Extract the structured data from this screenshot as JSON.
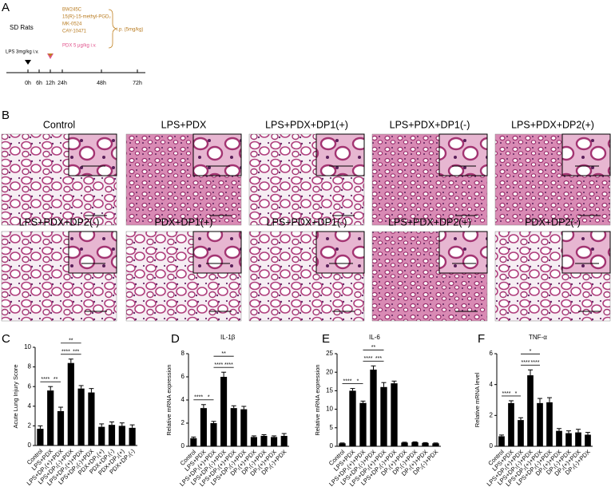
{
  "panel_labels": [
    "A",
    "B",
    "C",
    "D",
    "E",
    "F"
  ],
  "panel_a": {
    "animal": "SD Rats",
    "lps": "LPS 3mg/kg i.v.",
    "drugs": [
      "BW245C",
      "15(R)-15-methyl-PGD₂",
      "MK-0524",
      "CAY-10471"
    ],
    "pdx": "PDX 5 μg/kg i.v.",
    "route": "i.p. (5mg/kg)",
    "timepoints": [
      "0h",
      "6h",
      "12h",
      "24h",
      "48h",
      "72h"
    ]
  },
  "panel_b": {
    "groups": [
      "Control",
      "LPS+PDX",
      "LPS+PDX+DP1(+)",
      "LPS+PDX+DP1(-)",
      "LPS+PDX+DP2(+)",
      "LPS+PDX+DP2(-)",
      "PDX+DP1(+)",
      "LPS+PDX+DP1(-)",
      "LPS+PDX+DP2(+)",
      "PDX+DP2(-)"
    ]
  },
  "chart_data": [
    {
      "type": "bar",
      "ylabel": "Acute Lung Injury Score",
      "categories": [
        "Control",
        "LPS+PDX",
        "LPS+DP₁(+)+PDX",
        "LPS+DP₁(-)+PDX",
        "LPS+DP₂(+)+PDX",
        "LPS+DP₂(-)+PDX",
        "PDX+DP₁(+)",
        "PDX+DP₁(-)",
        "PDX+DP₂(+)",
        "PDX+DP₂(-)"
      ],
      "values": [
        1.7,
        5.6,
        3.5,
        8.4,
        5.8,
        5.4,
        1.9,
        2.1,
        2.0,
        1.8
      ],
      "errors": [
        0.3,
        0.4,
        0.4,
        0.4,
        0.3,
        0.4,
        0.3,
        0.3,
        0.3,
        0.3
      ],
      "color": "#000000",
      "ylim": [
        0,
        10
      ],
      "yticks": [
        0,
        2,
        4,
        6,
        8,
        10
      ],
      "significance": [
        {
          "label": "****",
          "between": [
            0,
            1
          ]
        },
        {
          "label": "**",
          "between": [
            1,
            2
          ]
        },
        {
          "label": "****",
          "between": [
            2,
            3
          ]
        },
        {
          "label": "***",
          "between": [
            3,
            4
          ]
        },
        {
          "label": "**",
          "between": [
            2,
            4
          ]
        }
      ]
    },
    {
      "type": "bar",
      "title": "IL-1β",
      "ylabel": "Relative mRNA expression",
      "categories": [
        "Control",
        "LPS+PDX",
        "LPS+DP₁(+)+PDX",
        "LPS+DP₁(-)+PDX",
        "LPS+DP₂(+)+PDX",
        "LPS+DP₂(-)+PDX",
        "DP₁(+)+PDX",
        "DP₁(-)+PDX",
        "DP₂(+)+PDX",
        "DP₂(-)+PDX"
      ],
      "values": [
        0.7,
        3.3,
        2.0,
        6.0,
        3.3,
        3.2,
        0.8,
        0.9,
        0.8,
        0.9
      ],
      "errors": [
        0.1,
        0.3,
        0.15,
        0.4,
        0.2,
        0.25,
        0.1,
        0.1,
        0.1,
        0.2
      ],
      "color": "#000000",
      "ylim": [
        0,
        8
      ],
      "yticks": [
        0,
        2,
        4,
        6,
        8
      ],
      "significance": [
        {
          "label": "****",
          "between": [
            0,
            1
          ]
        },
        {
          "label": "*",
          "between": [
            1,
            2
          ]
        },
        {
          "label": "****",
          "between": [
            2,
            3
          ]
        },
        {
          "label": "****",
          "between": [
            3,
            4
          ]
        },
        {
          "label": "**",
          "between": [
            2,
            4
          ]
        }
      ]
    },
    {
      "type": "bar",
      "title": "IL-6",
      "ylabel": "Relative mRNA expression",
      "categories": [
        "Control",
        "LPS+PDX",
        "LPS+DP₁(+)+PDX",
        "LPS+DP₁(-)+PDX",
        "LPS+DP₂(+)+PDX",
        "LPS+DP₂(-)+PDX",
        "DP₁(+)+PDX",
        "DP₁(-)+PDX",
        "DP₂(+)+PDX",
        "DP₂(-)+PDX"
      ],
      "values": [
        0.8,
        15,
        11.7,
        20.7,
        16,
        17,
        1.0,
        1.1,
        0.9,
        0.8
      ],
      "errors": [
        0.1,
        0.6,
        0.5,
        1.0,
        1.2,
        0.6,
        0.1,
        0.1,
        0.1,
        0.1
      ],
      "color": "#000000",
      "ylim": [
        0,
        25
      ],
      "yticks": [
        0,
        5,
        10,
        15,
        20,
        25
      ],
      "significance": [
        {
          "label": "****",
          "between": [
            0,
            1
          ]
        },
        {
          "label": "*",
          "between": [
            1,
            2
          ]
        },
        {
          "label": "****",
          "between": [
            2,
            3
          ]
        },
        {
          "label": "***",
          "between": [
            3,
            4
          ]
        },
        {
          "label": "**",
          "between": [
            2,
            4
          ]
        }
      ]
    },
    {
      "type": "bar",
      "title": "TNF-α",
      "ylabel": "Relative mRNA level",
      "categories": [
        "Control",
        "LPS+PDX",
        "LPS+DP₁(+)+PDX",
        "LPS+DP₁(-)+PDX",
        "LPS+DP₂(+)+PDX",
        "LPS+DP₂(-)+PDX",
        "DP₁(+)+PDX",
        "DP₁(-)+PDX",
        "DP₂(+)+PDX",
        "DP₂(-)+PDX"
      ],
      "values": [
        0.65,
        2.8,
        1.7,
        4.6,
        2.8,
        2.85,
        1.0,
        0.85,
        0.9,
        0.75
      ],
      "errors": [
        0.08,
        0.15,
        0.15,
        0.35,
        0.3,
        0.3,
        0.15,
        0.15,
        0.2,
        0.15
      ],
      "color": "#000000",
      "ylim": [
        0,
        6
      ],
      "yticks": [
        0,
        2,
        4,
        6
      ],
      "significance": [
        {
          "label": "****",
          "between": [
            0,
            1
          ]
        },
        {
          "label": "*",
          "between": [
            1,
            2
          ]
        },
        {
          "label": "****",
          "between": [
            2,
            3
          ]
        },
        {
          "label": "****",
          "between": [
            3,
            4
          ]
        },
        {
          "label": "*",
          "between": [
            2,
            4
          ]
        }
      ]
    }
  ]
}
